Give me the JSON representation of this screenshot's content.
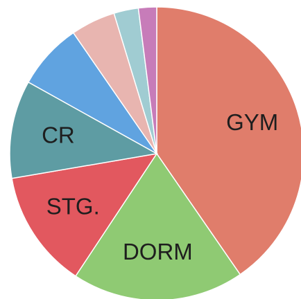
{
  "chart_data": {
    "type": "pie",
    "categories": [
      "GYM",
      "DORM",
      "STG.",
      "CR",
      null,
      null,
      null,
      null
    ],
    "values": [
      40.4,
      18.9,
      13,
      10.8,
      7.3,
      4.9,
      2.7,
      2
    ],
    "colors": [
      "#e07d6b",
      "#8fca73",
      "#e2585f",
      "#5e9ca3",
      "#60a3e0",
      "#e8b5b0",
      "#a0ccd2",
      "#c77cb9"
    ]
  }
}
